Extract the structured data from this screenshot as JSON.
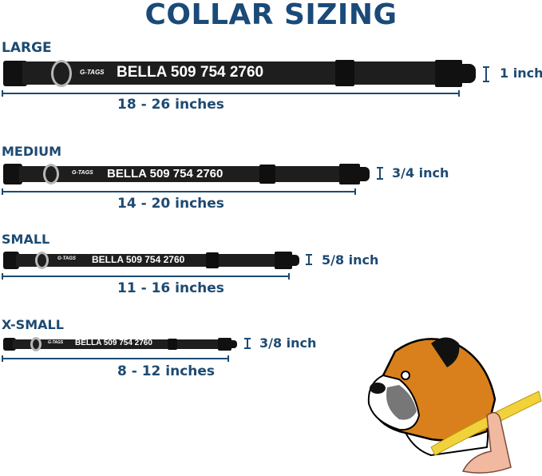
{
  "title": "COLLAR SIZING",
  "brand_logo": "G-TAGS",
  "colors": {
    "text": "#1d4a72",
    "collar": "#1e1e1e",
    "ring": "#b8b8b8"
  },
  "sizes": [
    {
      "label": "LARGE",
      "engraving": "BELLA 509 754 2760",
      "width": "1 inch",
      "range": "18 - 26 inches"
    },
    {
      "label": "MEDIUM",
      "engraving": "BELLA 509 754 2760",
      "width": "3/4 inch",
      "range": "14 - 20 inches"
    },
    {
      "label": "SMALL",
      "engraving": "BELLA 509 754 2760",
      "width": "5/8 inch",
      "range": "11 - 16 inches"
    },
    {
      "label": "X-SMALL",
      "engraving": "BELLA 509 754 2760",
      "width": "3/8 inch",
      "range": "8 - 12 inches"
    }
  ],
  "illustration": "boxer-dog-neck-measuring-tape"
}
